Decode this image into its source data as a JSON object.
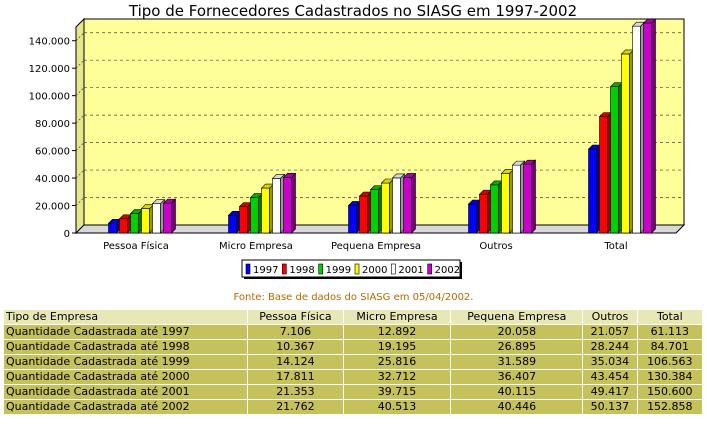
{
  "chart_data": {
    "type": "bar",
    "title": "Tipo de Fornecedores Cadastrados no SIASG em 1997-2002",
    "categories": [
      "Pessoa Física",
      "Micro Empresa",
      "Pequena Empresa",
      "Outros",
      "Total"
    ],
    "y_ticks": [
      "0",
      "20.000",
      "40.000",
      "60.000",
      "80.000",
      "100.000",
      "120.000",
      "140.000"
    ],
    "ylim": [
      0,
      150000
    ],
    "grid": true,
    "legend_position": "bottom",
    "series": [
      {
        "name": "1997",
        "color": "#0000ff",
        "values": [
          7106,
          12892,
          20058,
          21057,
          61113
        ]
      },
      {
        "name": "1998",
        "color": "#ff0000",
        "values": [
          10367,
          19195,
          26895,
          28244,
          84701
        ]
      },
      {
        "name": "1999",
        "color": "#00d000",
        "values": [
          14124,
          25816,
          31589,
          35034,
          106563
        ]
      },
      {
        "name": "2000",
        "color": "#ffff00",
        "values": [
          17811,
          32712,
          36407,
          43454,
          130384
        ]
      },
      {
        "name": "2001",
        "color": "#ffffff",
        "values": [
          21353,
          39715,
          40115,
          49417,
          150600
        ]
      },
      {
        "name": "2002",
        "color": "#cc00cc",
        "values": [
          21762,
          40513,
          40446,
          50137,
          152858
        ]
      }
    ]
  },
  "source_note": "Fonte: Base de dados do SIASG em 05/04/2002.",
  "table": {
    "headers": [
      "Tipo de Empresa",
      "Pessoa Física",
      "Micro Empresa",
      "Pequena Empresa",
      "Outros",
      "Total"
    ],
    "rows": [
      [
        "Quantidade Cadastrada até 1997",
        "7.106",
        "12.892",
        "20.058",
        "21.057",
        "61.113"
      ],
      [
        "Quantidade Cadastrada até 1998",
        "10.367",
        "19.195",
        "26.895",
        "28.244",
        "84.701"
      ],
      [
        "Quantidade Cadastrada até 1999",
        "14.124",
        "25.816",
        "31.589",
        "35.034",
        "106.563"
      ],
      [
        "Quantidade Cadastrada até 2000",
        "17.811",
        "32.712",
        "36.407",
        "43.454",
        "130.384"
      ],
      [
        "Quantidade Cadastrada até 2001",
        "21.353",
        "39.715",
        "40.115",
        "49.417",
        "150.600"
      ],
      [
        "Quantidade Cadastrada até 2002",
        "21.762",
        "40.513",
        "40.446",
        "50.137",
        "152.858"
      ]
    ]
  }
}
